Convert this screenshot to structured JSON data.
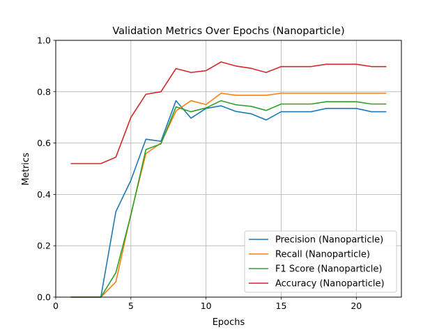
{
  "chart_data": {
    "type": "line",
    "title": "Validation Metrics Over Epochs (Nanoparticle)",
    "xlabel": "Epochs",
    "ylabel": "Metrics",
    "xlim": [
      0,
      23
    ],
    "ylim": [
      0,
      1.0
    ],
    "xticks": [
      0,
      5,
      10,
      15,
      20
    ],
    "yticks": [
      0.0,
      0.2,
      0.4,
      0.6,
      0.8,
      1.0
    ],
    "ytick_labels": [
      "0.0",
      "0.2",
      "0.4",
      "0.6",
      "0.8",
      "1.0"
    ],
    "grid": true,
    "legend_position": "bottom-right",
    "x": [
      1,
      2,
      3,
      4,
      5,
      6,
      7,
      8,
      9,
      10,
      11,
      12,
      13,
      14,
      15,
      16,
      17,
      18,
      19,
      20,
      21,
      22
    ],
    "series": [
      {
        "name": "Precision (Nanoparticle)",
        "color": "#1f77b4",
        "values": [
          0.0,
          0.0,
          0.0,
          0.333,
          0.455,
          0.615,
          0.607,
          0.765,
          0.697,
          0.735,
          0.745,
          0.723,
          0.714,
          0.69,
          0.722,
          0.722,
          0.722,
          0.735,
          0.735,
          0.735,
          0.722,
          0.722
        ]
      },
      {
        "name": "Recall (Nanoparticle)",
        "color": "#ff7f0e",
        "values": [
          0.0,
          0.0,
          0.0,
          0.059,
          0.324,
          0.559,
          0.6,
          0.725,
          0.765,
          0.75,
          0.794,
          0.786,
          0.786,
          0.786,
          0.794,
          0.794,
          0.794,
          0.794,
          0.794,
          0.794,
          0.794,
          0.794
        ]
      },
      {
        "name": "F1 Score (Nanoparticle)",
        "color": "#2ca02c",
        "values": [
          0.0,
          0.0,
          0.0,
          0.095,
          0.32,
          0.575,
          0.597,
          0.741,
          0.722,
          0.737,
          0.765,
          0.749,
          0.743,
          0.727,
          0.752,
          0.752,
          0.752,
          0.761,
          0.761,
          0.761,
          0.752,
          0.752
        ]
      },
      {
        "name": "Accuracy (Nanoparticle)",
        "color": "#d62728",
        "values": [
          0.52,
          0.52,
          0.52,
          0.545,
          0.7,
          0.79,
          0.8,
          0.89,
          0.875,
          0.882,
          0.916,
          0.9,
          0.891,
          0.875,
          0.898,
          0.898,
          0.898,
          0.907,
          0.907,
          0.907,
          0.898,
          0.898
        ]
      }
    ]
  }
}
